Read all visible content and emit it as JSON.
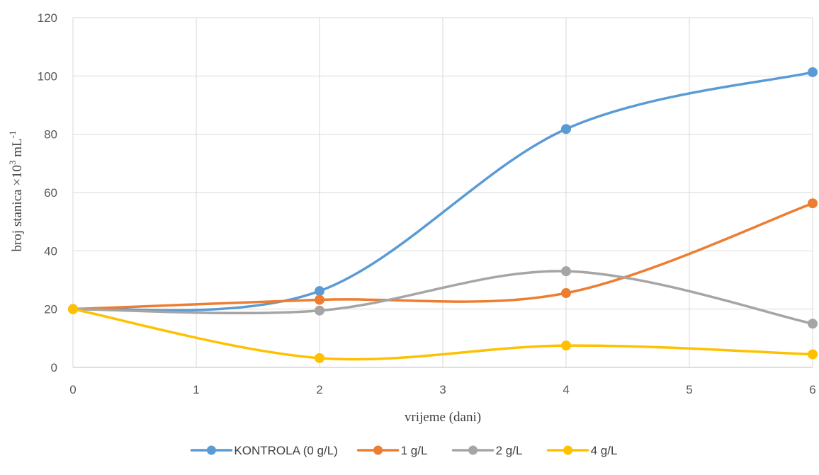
{
  "chart_data": {
    "type": "line",
    "title": "",
    "xlabel": "vrijeme (dani)",
    "ylabel": "broj stanica ×10",
    "ylabel_sup1": "3",
    "ylabel_unit": " mL",
    "ylabel_sup2": "-1",
    "xlim": [
      0,
      6
    ],
    "ylim": [
      0,
      120
    ],
    "x_ticks": [
      0,
      1,
      2,
      3,
      4,
      5,
      6
    ],
    "y_ticks": [
      0,
      20,
      40,
      60,
      80,
      100,
      120
    ],
    "grid": true,
    "legend_position": "bottom",
    "smooth": true,
    "series": [
      {
        "name": "KONTROLA (0 g/L)",
        "color": "#5b9bd5",
        "x": [
          0,
          2,
          4,
          6
        ],
        "y": [
          20,
          26.2,
          81.8,
          101.3
        ]
      },
      {
        "name": "1 g/L",
        "color": "#ed7d31",
        "x": [
          0,
          2,
          4,
          6
        ],
        "y": [
          20,
          23.2,
          25.5,
          56.3
        ]
      },
      {
        "name": "2 g/L",
        "color": "#a5a5a5",
        "x": [
          0,
          2,
          4,
          6
        ],
        "y": [
          20,
          19.5,
          33,
          15
        ]
      },
      {
        "name": "4 g/L",
        "color": "#ffc000",
        "x": [
          0,
          2,
          4,
          6
        ],
        "y": [
          20,
          3.2,
          7.5,
          4.5
        ]
      }
    ]
  }
}
